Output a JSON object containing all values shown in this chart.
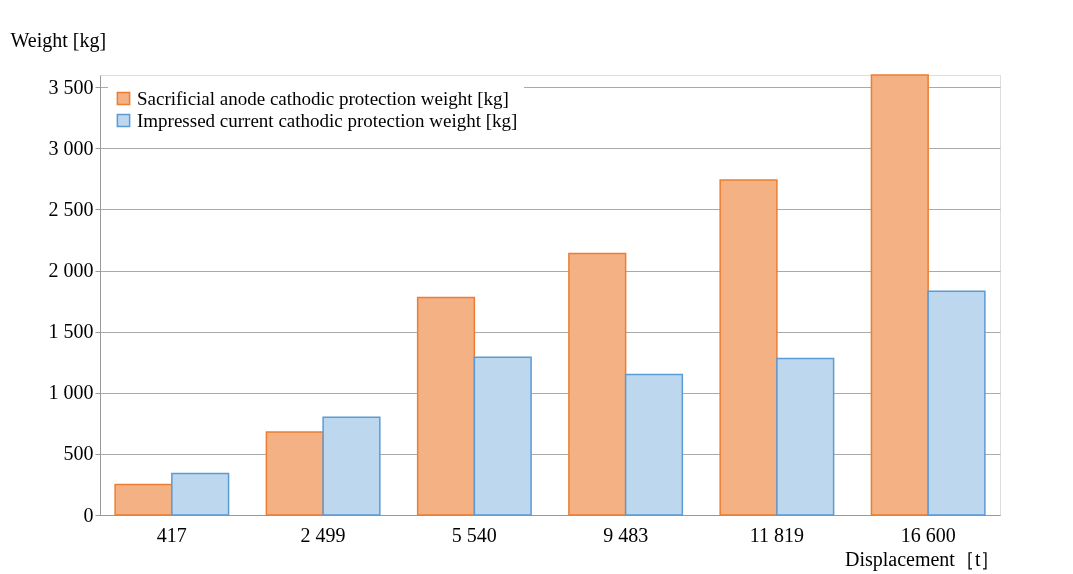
{
  "chart_data": {
    "type": "bar",
    "xlabel": "Displacement［t］",
    "ylabel": "Weight [kg]",
    "categories": [
      "417",
      "2 499",
      "5 540",
      "9 483",
      "11 819",
      "16 600"
    ],
    "series": [
      {
        "name": "Sacrificial anode cathodic protection weight [kg]",
        "color": "#f4b183",
        "values": [
          250,
          680,
          1780,
          2140,
          2740,
          3600
        ]
      },
      {
        "name": "Impressed current cathodic protection weight [kg]",
        "color": "#bdd7ee",
        "values": [
          340,
          800,
          1290,
          1150,
          1280,
          1830
        ]
      }
    ],
    "ylim": [
      0,
      3600
    ],
    "yticks": [
      0,
      {
        "value": 500,
        "label": "500"
      },
      {
        "value": 1000,
        "label": "1 000"
      },
      {
        "value": 1500,
        "label": "1 500"
      },
      {
        "value": 2000,
        "label": "2 000"
      },
      {
        "value": 2500,
        "label": "2 500"
      },
      {
        "value": 3000,
        "label": "3 000"
      },
      {
        "value": 3500,
        "label": "3 500"
      }
    ],
    "grid": "y",
    "legend": "top left"
  }
}
